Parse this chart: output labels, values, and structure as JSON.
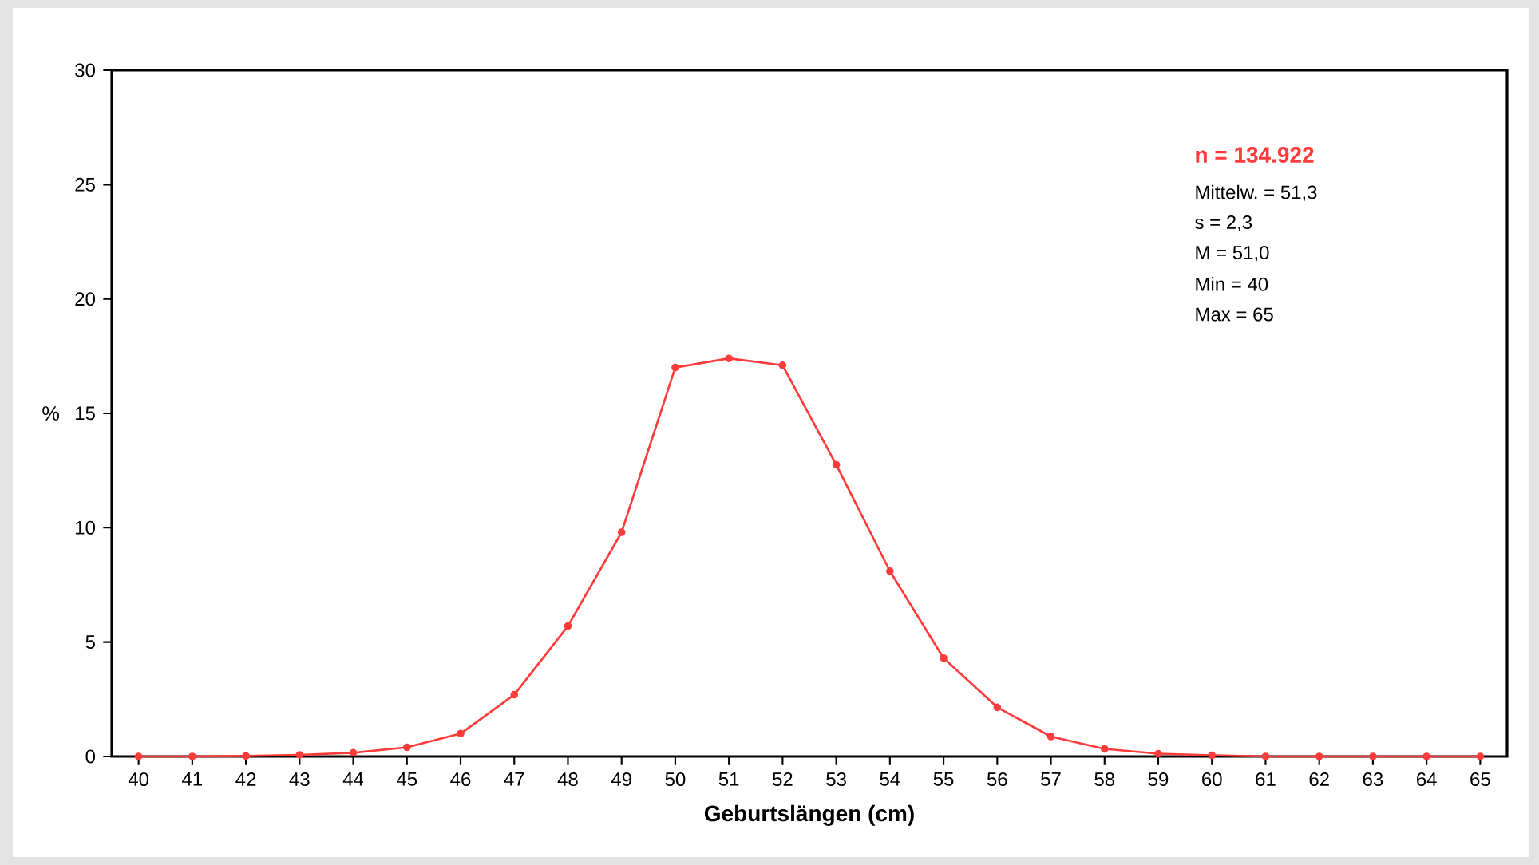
{
  "chart_data": {
    "type": "line",
    "xlabel": "Geburtslängen (cm)",
    "ylabel": "%",
    "categories": [
      "40",
      "41",
      "42",
      "43",
      "44",
      "45",
      "46",
      "47",
      "48",
      "49",
      "50",
      "51",
      "52",
      "53",
      "54",
      "55",
      "56",
      "57",
      "58",
      "59",
      "60",
      "61",
      "62",
      "63",
      "64",
      "65"
    ],
    "series": [
      {
        "color": "#ff3b3b",
        "values": [
          0,
          0,
          0.02,
          0.07,
          0.16,
          0.4,
          1.0,
          2.7,
          5.7,
          9.8,
          17.0,
          17.4,
          17.1,
          12.75,
          8.1,
          4.3,
          2.15,
          0.87,
          0.33,
          0.12,
          0.05,
          0,
          0,
          0,
          0,
          0
        ]
      }
    ],
    "ylim": [
      0,
      30
    ],
    "yticks": [
      0,
      5,
      10,
      15,
      20,
      25,
      30
    ],
    "grid": false,
    "marker": "circle",
    "line_style": "solid",
    "annotations": [
      "n = 134.922",
      "Mittelw. = 51,3",
      "s = 2,3",
      "M = 51,0",
      "Min = 40",
      "Max = 65"
    ]
  }
}
